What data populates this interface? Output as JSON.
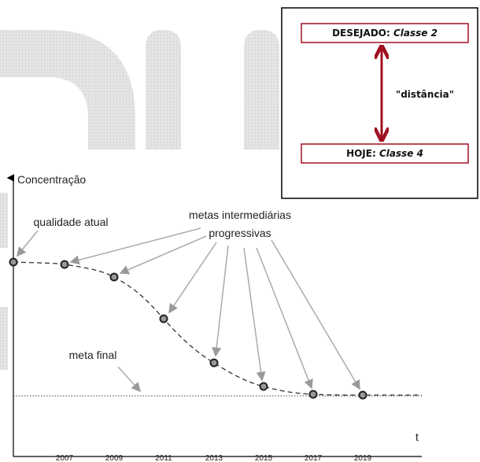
{
  "axis": {
    "y_label": "Concentração",
    "x_label": "t",
    "years": [
      "2007",
      "2009",
      "2011",
      "2013",
      "2015",
      "2017",
      "2019"
    ]
  },
  "annotations": {
    "current": "qualidade atual",
    "intermediate": [
      "metas intermediárias",
      "progressivas"
    ],
    "final": "meta final"
  },
  "box": {
    "desired": {
      "label": "DESEJADO:",
      "class": "Classe 2"
    },
    "today": {
      "label": "HOJE:",
      "class": "Classe 4"
    },
    "distance": "\"distância\""
  }
}
